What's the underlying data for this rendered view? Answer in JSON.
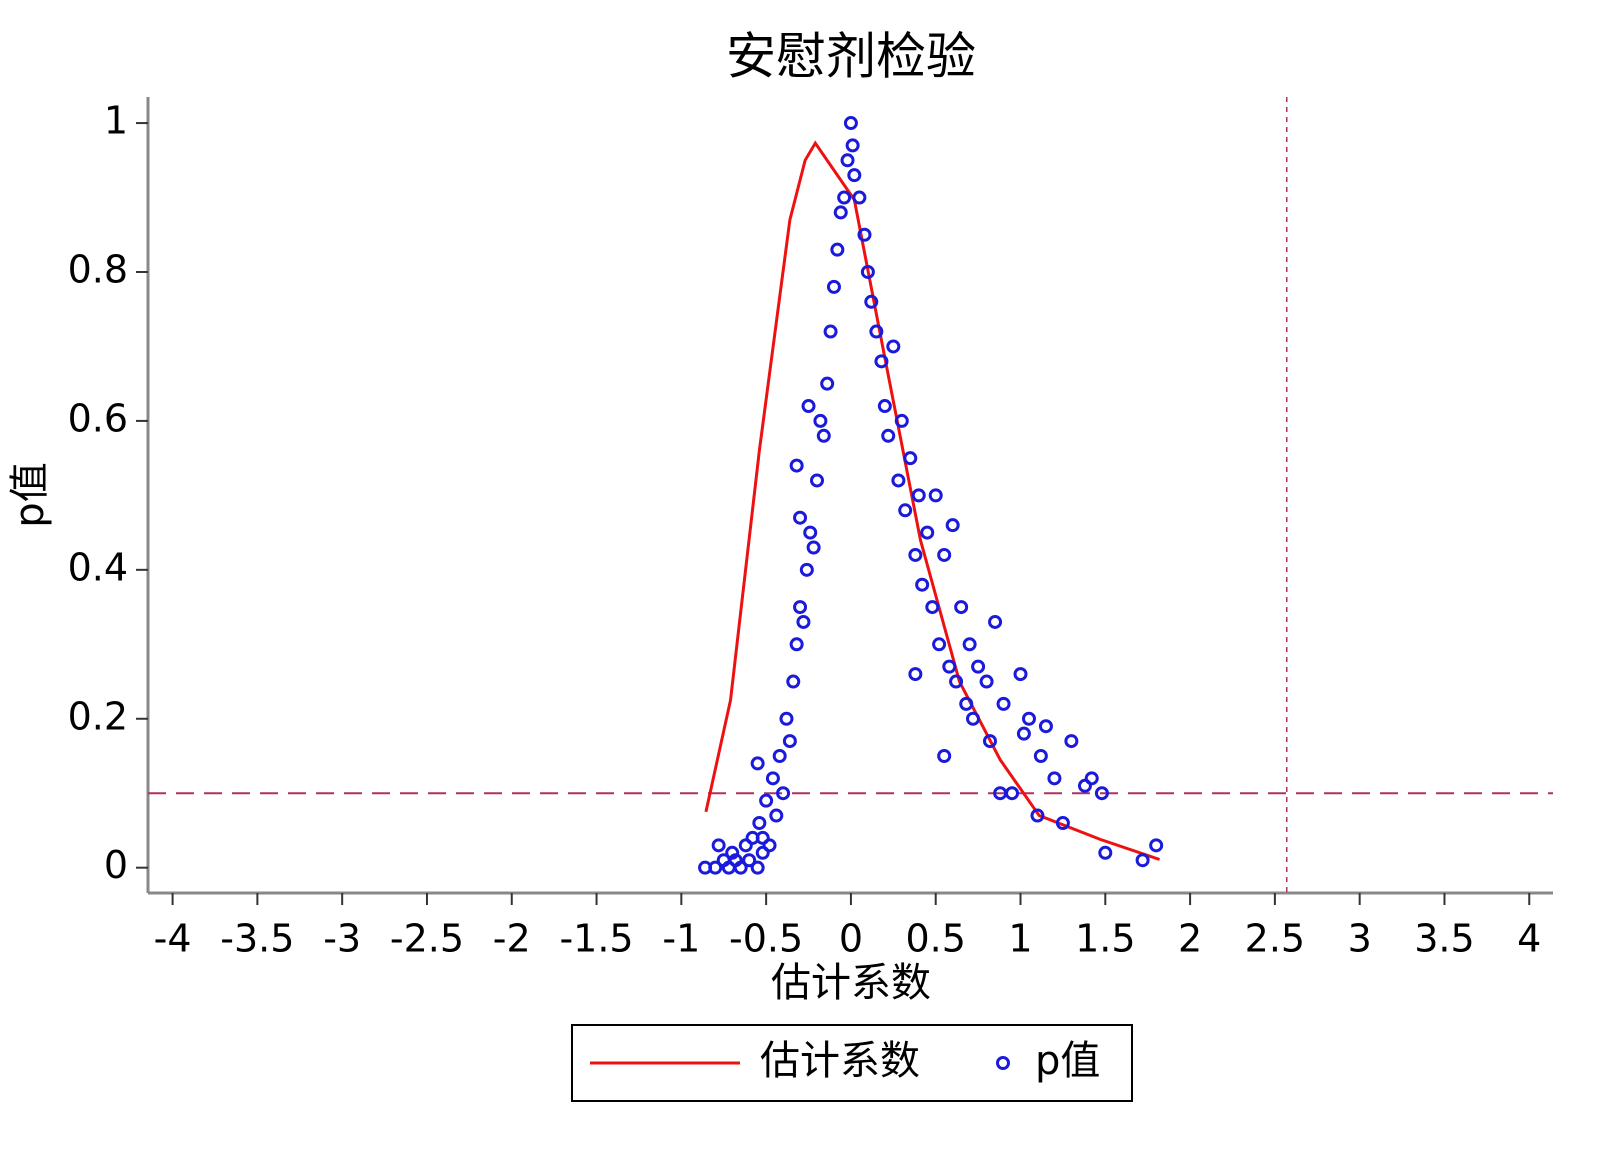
{
  "chart_data": {
    "type": "scatter",
    "title": "安慰剂检验",
    "x_label": "估计系数",
    "y_label": "p值",
    "xlim": [
      -4.145,
      4.14
    ],
    "ylim": [
      -0.034,
      1.035
    ],
    "xticks": [
      -4,
      -3.5,
      -3,
      -2.5,
      -2,
      -1.5,
      -1,
      -0.5,
      0,
      0.5,
      1,
      1.5,
      2,
      2.5,
      3,
      3.5,
      4
    ],
    "yticks": [
      0,
      0.2,
      0.4,
      0.6,
      0.8,
      1
    ],
    "reference_lines": {
      "y": 0.1,
      "x": 2.57,
      "color": "#b03060"
    },
    "legend": "bottom",
    "series": [
      {
        "name": "估计系数",
        "kind": "line",
        "color": "#ee1111",
        "x": [
          -0.855,
          -0.71,
          -0.54,
          -0.36,
          -0.27,
          -0.21,
          0.02,
          0.17,
          0.41,
          0.64,
          0.88,
          1.11,
          1.47,
          1.82
        ],
        "values": [
          0.075,
          0.225,
          0.56,
          0.87,
          0.95,
          0.973,
          0.897,
          0.72,
          0.44,
          0.25,
          0.145,
          0.07,
          0.038,
          0.011
        ]
      },
      {
        "name": "p值",
        "kind": "scatter",
        "color": "#1a1adc",
        "x": [
          -0.86,
          -0.8,
          -0.78,
          -0.75,
          -0.72,
          -0.7,
          -0.68,
          -0.65,
          -0.62,
          -0.6,
          -0.58,
          -0.55,
          -0.54,
          -0.52,
          -0.5,
          -0.48,
          -0.46,
          -0.44,
          -0.42,
          -0.4,
          -0.38,
          -0.36,
          -0.34,
          -0.32,
          -0.3,
          -0.28,
          -0.26,
          -0.24,
          -0.22,
          -0.2,
          -0.18,
          -0.16,
          -0.14,
          -0.12,
          -0.1,
          -0.08,
          -0.06,
          -0.04,
          -0.02,
          0,
          0.01,
          -0.55,
          -0.3,
          -0.32,
          -0.25,
          -0.52,
          0.02,
          0.05,
          0.08,
          0.1,
          0.12,
          0.15,
          0.18,
          0.2,
          0.22,
          0.25,
          0.28,
          0.3,
          0.32,
          0.35,
          0.38,
          0.4,
          0.42,
          0.45,
          0.48,
          0.5,
          0.52,
          0.55,
          0.58,
          0.6,
          0.62,
          0.65,
          0.68,
          0.7,
          0.72,
          0.75,
          0.8,
          0.82,
          0.85,
          0.88,
          0.9,
          0.95,
          1.0,
          1.02,
          1.05,
          1.1,
          1.12,
          1.15,
          1.2,
          1.25,
          1.3,
          1.38,
          1.42,
          1.48,
          1.5,
          1.72,
          1.8,
          0.55,
          0.38
        ],
        "values": [
          0,
          0,
          0.03,
          0.01,
          0,
          0.02,
          0.01,
          0,
          0.03,
          0.01,
          0.04,
          0,
          0.06,
          0.02,
          0.09,
          0.03,
          0.12,
          0.07,
          0.15,
          0.1,
          0.2,
          0.17,
          0.25,
          0.3,
          0.35,
          0.33,
          0.4,
          0.45,
          0.43,
          0.52,
          0.6,
          0.58,
          0.65,
          0.72,
          0.78,
          0.83,
          0.88,
          0.9,
          0.95,
          1,
          0.97,
          0.14,
          0.47,
          0.54,
          0.62,
          0.04,
          0.93,
          0.9,
          0.85,
          0.8,
          0.76,
          0.72,
          0.68,
          0.62,
          0.58,
          0.7,
          0.52,
          0.6,
          0.48,
          0.55,
          0.42,
          0.5,
          0.38,
          0.45,
          0.35,
          0.5,
          0.3,
          0.42,
          0.27,
          0.46,
          0.25,
          0.35,
          0.22,
          0.3,
          0.2,
          0.27,
          0.25,
          0.17,
          0.33,
          0.1,
          0.22,
          0.1,
          0.26,
          0.18,
          0.2,
          0.07,
          0.15,
          0.19,
          0.12,
          0.06,
          0.17,
          0.11,
          0.12,
          0.1,
          0.02,
          0.01,
          0.03,
          0.15,
          0.26
        ]
      }
    ]
  }
}
